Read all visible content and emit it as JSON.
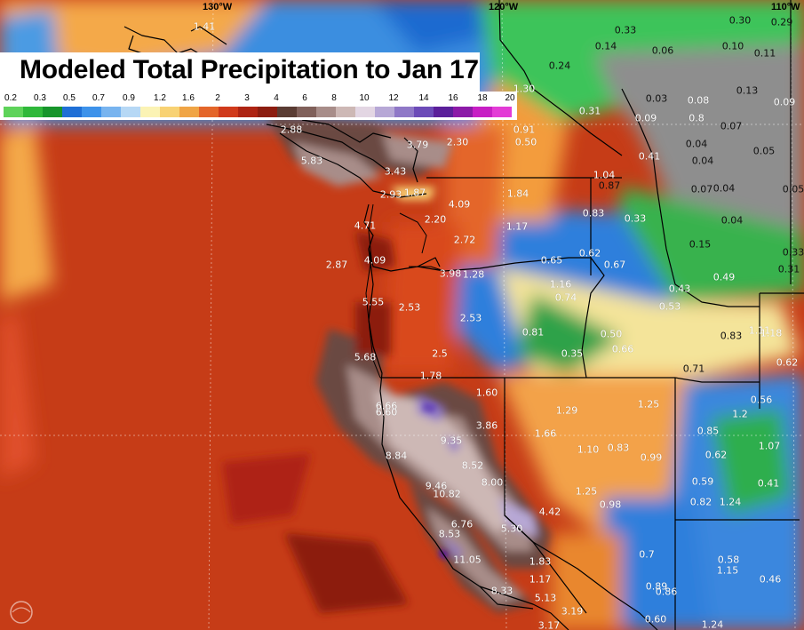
{
  "title": "Modeled Total Precipitation to Jan 17",
  "legend_ticks": [
    "0.2",
    "0.3",
    "0.5",
    "0.7",
    "0.9",
    "1.2",
    "1.6",
    "2",
    "3",
    "4",
    "6",
    "8",
    "10",
    "12",
    "14",
    "16",
    "18",
    "20"
  ],
  "legend_colors": [
    "#5ed35a",
    "#2fb83a",
    "#17952b",
    "#1f6fd6",
    "#3d92ea",
    "#78b4ef",
    "#b6d8f5",
    "#fbf3b4",
    "#f8d273",
    "#f0a545",
    "#e4662a",
    "#d03a1b",
    "#ae2413",
    "#8c1d10",
    "#5a3c33",
    "#80605a",
    "#a88d89",
    "#cdb8b5",
    "#e3d6e3",
    "#b7a8d6",
    "#8f78c7",
    "#6c4bb8",
    "#5b1f9a",
    "#8c1aa8",
    "#c71ec4",
    "#e33bd6"
  ],
  "lon_labels": {
    "w130": "130°W",
    "w120": "120°W",
    "w110": "110°W"
  },
  "values": [
    {
      "t": "1.41",
      "d": false
    },
    {
      "t": "0.30",
      "d": true
    },
    {
      "t": "0.29",
      "d": true
    },
    {
      "t": "0.33",
      "d": true
    },
    {
      "t": "0.14",
      "d": true
    },
    {
      "t": "0.06",
      "d": true
    },
    {
      "t": "0.10",
      "d": true
    },
    {
      "t": "0.11",
      "d": true
    },
    {
      "t": "0.24",
      "d": true
    },
    {
      "t": "1.30",
      "d": false
    },
    {
      "t": "0.13",
      "d": true
    },
    {
      "t": "0.03",
      "d": true
    },
    {
      "t": "0.08",
      "d": false
    },
    {
      "t": "0.09",
      "d": false
    },
    {
      "t": "0.31",
      "d": false
    },
    {
      "t": "0.09",
      "d": false
    },
    {
      "t": "0.8",
      "d": false
    },
    {
      "t": "0.07",
      "d": true
    },
    {
      "t": "0.91",
      "d": false
    },
    {
      "t": "0.50",
      "d": false
    },
    {
      "t": "2.88",
      "d": false
    },
    {
      "t": "3.79",
      "d": false
    },
    {
      "t": "2.30",
      "d": false
    },
    {
      "t": "0.04",
      "d": true
    },
    {
      "t": "0.05",
      "d": true
    },
    {
      "t": "0.41",
      "d": false
    },
    {
      "t": "0.04",
      "d": true
    },
    {
      "t": "5.83",
      "d": false
    },
    {
      "t": "3.43",
      "d": false
    },
    {
      "t": "1.04",
      "d": false
    },
    {
      "t": "0.87",
      "d": true
    },
    {
      "t": "0.07",
      "d": true
    },
    {
      "t": "0.04",
      "d": true
    },
    {
      "t": "0.05",
      "d": true
    },
    {
      "t": "2.93",
      "d": false
    },
    {
      "t": "1.87",
      "d": false
    },
    {
      "t": "1.84",
      "d": false
    },
    {
      "t": "4.09",
      "d": false
    },
    {
      "t": "0.83",
      "d": false
    },
    {
      "t": "0.33",
      "d": false
    },
    {
      "t": "0.04",
      "d": true
    },
    {
      "t": "4.71",
      "d": false
    },
    {
      "t": "2.20",
      "d": false
    },
    {
      "t": "1.17",
      "d": false
    },
    {
      "t": "2.72",
      "d": false
    },
    {
      "t": "0.15",
      "d": true
    },
    {
      "t": "0.62",
      "d": false
    },
    {
      "t": "0.33",
      "d": true
    },
    {
      "t": "2.87",
      "d": false
    },
    {
      "t": "4.09",
      "d": false
    },
    {
      "t": "0.65",
      "d": false
    },
    {
      "t": "0.67",
      "d": false
    },
    {
      "t": "0.31",
      "d": true
    },
    {
      "t": "3.98",
      "d": false
    },
    {
      "t": "1.28",
      "d": false
    },
    {
      "t": "0.49",
      "d": false
    },
    {
      "t": "1.16",
      "d": false
    },
    {
      "t": "0.43",
      "d": false
    },
    {
      "t": "0.74",
      "d": false
    },
    {
      "t": "5.55",
      "d": false
    },
    {
      "t": "2.53",
      "d": false
    },
    {
      "t": "0.53",
      "d": false
    },
    {
      "t": "2.53",
      "d": false
    },
    {
      "t": "0.81",
      "d": false
    },
    {
      "t": "0.50",
      "d": false
    },
    {
      "t": "0.83",
      "d": true
    },
    {
      "t": "1.11",
      "d": false
    },
    {
      "t": "1.18",
      "d": false
    },
    {
      "t": "0.66",
      "d": false
    },
    {
      "t": "5.68",
      "d": false
    },
    {
      "t": "2.5",
      "d": false
    },
    {
      "t": "0.35",
      "d": false
    },
    {
      "t": "0.62",
      "d": false
    },
    {
      "t": "0.71",
      "d": true
    },
    {
      "t": "1.78",
      "d": false
    },
    {
      "t": "1.60",
      "d": false
    },
    {
      "t": "0.56",
      "d": false
    },
    {
      "t": "6.66",
      "d": false
    },
    {
      "t": "1.29",
      "d": false
    },
    {
      "t": "1.25",
      "d": false
    },
    {
      "t": "6.60",
      "d": false
    },
    {
      "t": "3.86",
      "d": false
    },
    {
      "t": "1.2",
      "d": false
    },
    {
      "t": "0.85",
      "d": false
    },
    {
      "t": "1.66",
      "d": false
    },
    {
      "t": "9.35",
      "d": false
    },
    {
      "t": "1.07",
      "d": false
    },
    {
      "t": "1.10",
      "d": false
    },
    {
      "t": "0.83",
      "d": false
    },
    {
      "t": "8.84",
      "d": false
    },
    {
      "t": "0.99",
      "d": false
    },
    {
      "t": "0.62",
      "d": false
    },
    {
      "t": "8.52",
      "d": false
    },
    {
      "t": "0.59",
      "d": false
    },
    {
      "t": "0.41",
      "d": false
    },
    {
      "t": "8.00",
      "d": false
    },
    {
      "t": "9.46",
      "d": false
    },
    {
      "t": "10.82",
      "d": false
    },
    {
      "t": "1.25",
      "d": false
    },
    {
      "t": "0.82",
      "d": false
    },
    {
      "t": "1.24",
      "d": false
    },
    {
      "t": "0.98",
      "d": false
    },
    {
      "t": "4.42",
      "d": false
    },
    {
      "t": "6.76",
      "d": false
    },
    {
      "t": "5.30",
      "d": false
    },
    {
      "t": "8.53",
      "d": false
    },
    {
      "t": "0.58",
      "d": false
    },
    {
      "t": "0.7",
      "d": false
    },
    {
      "t": "11.05",
      "d": false
    },
    {
      "t": "1.83",
      "d": false
    },
    {
      "t": "1.15",
      "d": false
    },
    {
      "t": "0.46",
      "d": false
    },
    {
      "t": "1.17",
      "d": false
    },
    {
      "t": "0.89",
      "d": false
    },
    {
      "t": "0.86",
      "d": false
    },
    {
      "t": "8.33",
      "d": false
    },
    {
      "t": "5.13",
      "d": false
    },
    {
      "t": "3.19",
      "d": false
    },
    {
      "t": "0.60",
      "d": false
    },
    {
      "t": "1.24",
      "d": false
    },
    {
      "t": "3.17",
      "d": false
    }
  ]
}
